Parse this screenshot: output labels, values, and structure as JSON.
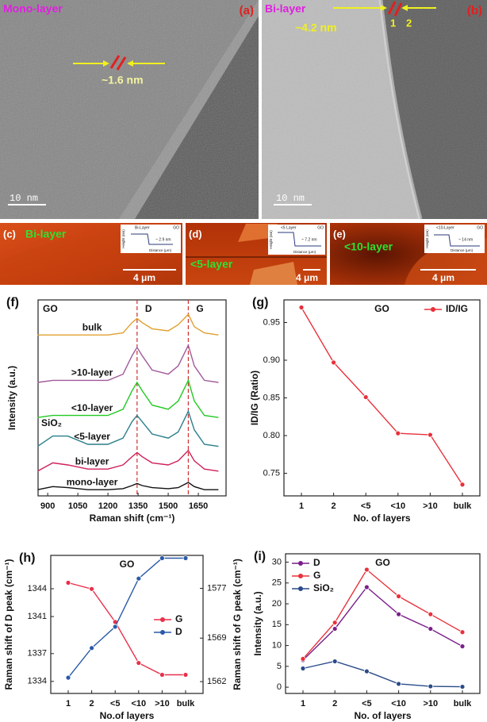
{
  "images": [
    {
      "label": "(a)",
      "title": "Mono-layer",
      "annotation": "~1.6 nm",
      "scale_bar": "10 nm"
    },
    {
      "label": "(b)",
      "title": "Bi-layer",
      "annotation": "~4.2 nm",
      "layer_marks": [
        "1",
        "2"
      ],
      "scale_bar": "10 nm"
    }
  ],
  "afm": [
    {
      "label": "(c)",
      "title": "Bi-layer",
      "scale_bar": "4 μm",
      "inset": {
        "legend": "Bi-Layer",
        "sample": "GO",
        "step": "~ 2.9 nm",
        "xlabel": "Distance (μm)",
        "ylabel": "Height (nm)"
      }
    },
    {
      "label": "(d)",
      "title": "<5-layer",
      "scale_bar": "4 μm",
      "inset": {
        "legend": "<5 Layer",
        "sample": "GO",
        "step": "~ 7.2 nm",
        "xlabel": "Distance (μm)",
        "ylabel": "Height (nm)"
      }
    },
    {
      "label": "(e)",
      "title": "<10-layer",
      "scale_bar": "4 μm",
      "inset": {
        "legend": "<10-Layer",
        "sample": "GO",
        "step": "~ 14 nm",
        "xlabel": "Distance (μm)",
        "ylabel": "Height (nm)"
      }
    }
  ],
  "chart_data": [
    {
      "type": "line",
      "panel": "(f)",
      "title": "GO",
      "xlabel": "Raman shift (cm⁻¹)",
      "ylabel": "Intensity (a.u.)",
      "annotation": "SiO₂",
      "x": [
        850,
        925,
        1000,
        1100,
        1200,
        1275,
        1320,
        1345,
        1370,
        1420,
        1500,
        1550,
        1600,
        1630,
        1680,
        1750
      ],
      "xlim": [
        852,
        1788
      ],
      "xticks": [
        900,
        1050,
        1200,
        1350,
        1500,
        1650
      ],
      "ylim": [
        0,
        9.5
      ],
      "vlines": [
        {
          "value": 1345,
          "label": "D"
        },
        {
          "value": 1600,
          "label": "G"
        }
      ],
      "series": [
        {
          "name": "mono-layer",
          "color": "#111111",
          "values": [
            0.3,
            0.45,
            0.4,
            0.3,
            0.3,
            0.35,
            0.5,
            0.6,
            0.5,
            0.4,
            0.35,
            0.4,
            0.65,
            0.45,
            0.3,
            0.3
          ]
        },
        {
          "name": "bi-layer",
          "color": "#d0205a",
          "values": [
            1.2,
            1.6,
            1.5,
            1.3,
            1.3,
            1.5,
            1.9,
            2.1,
            1.9,
            1.6,
            1.5,
            1.7,
            2.2,
            1.7,
            1.3,
            1.2
          ]
        },
        {
          "name": "<5-layer",
          "color": "#2a7f8a",
          "values": [
            2.4,
            2.9,
            2.9,
            2.5,
            2.5,
            2.8,
            3.6,
            3.9,
            3.6,
            3.0,
            2.8,
            3.1,
            4.1,
            3.2,
            2.5,
            2.4
          ]
        },
        {
          "name": "<10-layer",
          "color": "#22c922",
          "values": [
            3.8,
            3.9,
            3.9,
            3.9,
            3.9,
            4.2,
            5.1,
            5.5,
            5.1,
            4.4,
            4.2,
            4.6,
            5.6,
            4.6,
            3.9,
            3.8
          ]
        },
        {
          "name": ">10-layer",
          "color": "#a05a9a",
          "values": [
            5.5,
            5.6,
            5.6,
            5.6,
            5.6,
            5.9,
            6.8,
            7.2,
            6.8,
            6.1,
            5.9,
            6.3,
            7.3,
            6.3,
            5.6,
            5.5
          ]
        },
        {
          "name": "bulk",
          "color": "#e0a030",
          "values": [
            7.8,
            7.8,
            7.8,
            7.8,
            7.8,
            7.9,
            8.4,
            8.6,
            8.4,
            8.1,
            8.0,
            8.3,
            8.8,
            8.2,
            7.9,
            7.8
          ]
        }
      ]
    },
    {
      "type": "line",
      "panel": "(g)",
      "title": "GO",
      "xlabel": "No. of layers",
      "ylabel": "ID/IG (Ratio)",
      "legend": "upper right",
      "categories": [
        "1",
        "2",
        "<5",
        "<10",
        ">10",
        "bulk"
      ],
      "ylim": [
        0.72,
        0.98
      ],
      "yticks": [
        0.75,
        {
          "value": 0.8,
          "label": "0.80"
        },
        0.85,
        {
          "value": 0.9,
          "label": "0.90"
        },
        0.95
      ],
      "series": [
        {
          "name": "ID/IG",
          "color": "#e8303a",
          "values": [
            0.97,
            0.897,
            0.851,
            0.803,
            0.801,
            0.735
          ]
        }
      ]
    },
    {
      "type": "line",
      "panel": "(h)",
      "title": "GO",
      "xlabel": "No.of layers",
      "ylabel": "Raman shift of D peak (cm⁻¹)",
      "y2label": "Raman shift of G peak (cm⁻¹)",
      "legend": "center right",
      "categories": [
        "1",
        "2",
        "<5",
        "<10",
        ">10",
        "bulk"
      ],
      "ylim": [
        1332.7,
        1347.6
      ],
      "yticks": [
        1334,
        1337,
        1341,
        1344
      ],
      "y2lim": [
        1560.1,
        1582.3
      ],
      "y2ticks": [
        1562,
        1569,
        1577
      ],
      "series": [
        {
          "name": "G",
          "color": "#e8304a",
          "axis": "y2",
          "values": [
            1577.9,
            1576.9,
            1571.6,
            1565.0,
            1563.1,
            1563.1
          ]
        },
        {
          "name": "D",
          "color": "#2a5aa8",
          "values": [
            1334.4,
            1337.6,
            1339.9,
            1345.1,
            1347.3,
            1347.3
          ]
        }
      ]
    },
    {
      "type": "line",
      "panel": "(i)",
      "title": "GO",
      "xlabel": "No. of layers",
      "ylabel": "Intensity (a.u.)",
      "legend": "upper left",
      "categories": [
        "1",
        "2",
        "<5",
        "<10",
        ">10",
        "bulk"
      ],
      "ylim": [
        -1.5,
        32
      ],
      "yticks": [
        0,
        5,
        10,
        15,
        20,
        25,
        30
      ],
      "series": [
        {
          "name": "D",
          "color": "#7a1f8a",
          "values": [
            6.5,
            14,
            24,
            17.5,
            14,
            9.8
          ]
        },
        {
          "name": "G",
          "color": "#e8303a",
          "values": [
            6.8,
            15.5,
            28.2,
            21.8,
            17.5,
            13.2
          ]
        },
        {
          "name": "SiO₂",
          "color": "#2a4a88",
          "values": [
            4.5,
            6.2,
            3.8,
            0.8,
            0.2,
            0.1
          ]
        }
      ]
    }
  ]
}
